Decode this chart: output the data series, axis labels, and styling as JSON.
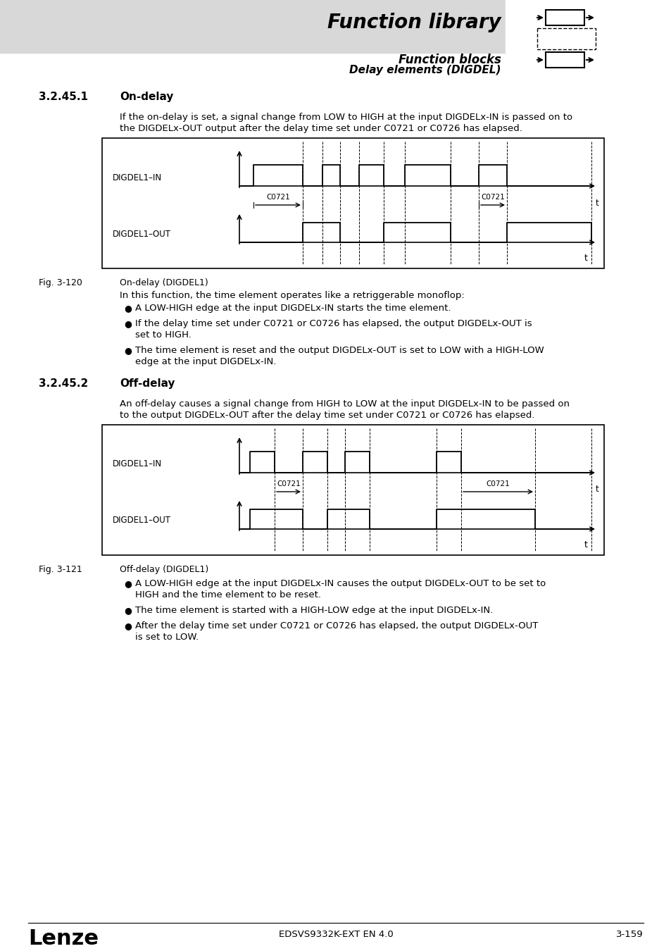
{
  "bg_color": "#ffffff",
  "page_width": 9.54,
  "page_height": 13.5,
  "header_title": "Function library",
  "header_sub1": "Function blocks",
  "header_sub2": "Delay elements (DIGDEL)",
  "section1_num": "3.2.45.1",
  "section1_title": "On-delay",
  "section1_text1": "If the on-delay is set, a signal change from LOW to HIGH at the input DIGDELx-IN is passed on to",
  "section1_text2": "the DIGDELx-OUT output after the delay time set under C0721 or C0726 has elapsed.",
  "fig1_label": "Fig. 3-120",
  "fig1_caption": "On-delay (DIGDEL1)",
  "on_delay_intro": "In this function, the time element operates like a retriggerable monoflop:",
  "on_delay_bullets": [
    "A LOW-HIGH edge at the input DIGDELx-IN starts the time element.",
    "If the delay time set under C0721 or C0726 has elapsed, the output DIGDELx-OUT is set to HIGH.",
    "The time element is reset and the output DIGDELx-OUT is set to LOW with a HIGH-LOW edge at the input DIGDELx-IN."
  ],
  "section2_num": "3.2.45.2",
  "section2_title": "Off-delay",
  "section2_text1": "An off-delay causes a signal change from HIGH to LOW at the input DIGDELx-IN to be passed on",
  "section2_text2": "to the output DIGDELx-OUT after the delay time set under C0721 or C0726 has elapsed.",
  "fig2_label": "Fig. 3-121",
  "fig2_caption": "Off-delay (DIGDEL1)",
  "off_delay_bullets": [
    "A LOW-HIGH edge at the input DIGDELx-IN causes the output DIGDELx-OUT to be set to HIGH and the time element to be reset.",
    "The time element is started with a HIGH-LOW edge at the input DIGDELx-IN.",
    "After the delay time set under C0721 or C0726 has elapsed, the output DIGDELx-OUT is set to LOW."
  ],
  "footer_logo": "Lenze",
  "footer_center": "EDSVS9332K-EXT EN 4.0",
  "footer_right": "3-159"
}
